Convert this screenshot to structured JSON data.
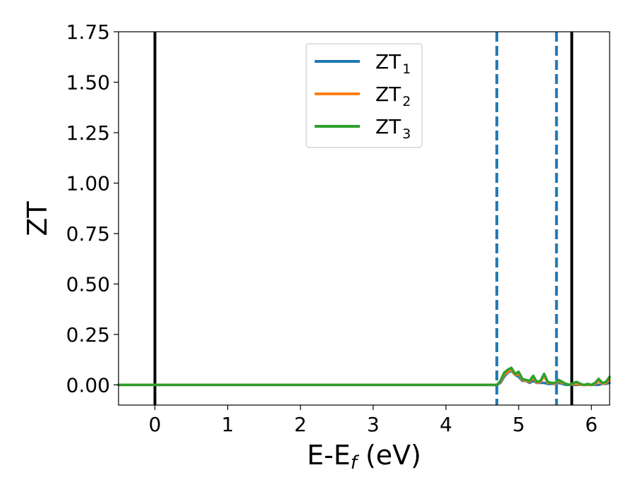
{
  "chart_data": {
    "type": "line",
    "xlabel": {
      "main": "E-E",
      "sub": "f",
      "tail": " (eV)"
    },
    "ylabel": "ZT",
    "xlim": [
      -0.5,
      6.25
    ],
    "ylim": [
      -0.1,
      1.75
    ],
    "xticks": [
      0,
      1,
      2,
      3,
      4,
      5,
      6
    ],
    "yticks": [
      0.0,
      0.25,
      0.5,
      0.75,
      1.0,
      1.25,
      1.5,
      1.75
    ],
    "xtick_labels": [
      "0",
      "1",
      "2",
      "3",
      "4",
      "5",
      "6"
    ],
    "ytick_labels": [
      "0.00",
      "0.25",
      "0.50",
      "0.75",
      "1.00",
      "1.25",
      "1.50",
      "1.75"
    ],
    "grid": false,
    "legend": {
      "placement": "top-center",
      "entries": [
        {
          "main": "ZT",
          "sub": "1"
        },
        {
          "main": "ZT",
          "sub": "2"
        },
        {
          "main": "ZT",
          "sub": "3"
        }
      ]
    },
    "vlines": [
      {
        "x": 0.0,
        "style": "solid",
        "color": "#000000"
      },
      {
        "x": 4.7,
        "style": "dashed",
        "color": "#1f77b4"
      },
      {
        "x": 5.52,
        "style": "dashed",
        "color": "#1f77b4"
      },
      {
        "x": 5.73,
        "style": "solid",
        "color": "#000000"
      }
    ],
    "series": [
      {
        "color": "#1f77b4",
        "x": [
          -0.5,
          4.7,
          4.75,
          4.8,
          4.85,
          4.9,
          4.95,
          5.0,
          5.05,
          5.1,
          5.15,
          5.2,
          5.25,
          5.3,
          5.35,
          5.4,
          5.45,
          5.5,
          5.55,
          5.6,
          5.65,
          5.7,
          5.75,
          5.8,
          5.85,
          5.9,
          5.95,
          6.0,
          6.05,
          6.1,
          6.15,
          6.2,
          6.25
        ],
        "y": [
          0.0,
          0.0,
          0.01,
          0.04,
          0.06,
          0.07,
          0.05,
          0.04,
          0.02,
          0.02,
          0.01,
          0.02,
          0.01,
          0.01,
          0.01,
          0.005,
          0.005,
          0.005,
          0.01,
          0.005,
          0.0,
          0.0,
          0.0,
          0.0,
          0.0,
          0.0,
          0.0,
          0.0,
          0.0,
          0.0,
          0.005,
          0.005,
          0.01
        ]
      },
      {
        "color": "#ff7f0e",
        "x": [
          -0.5,
          4.7,
          4.75,
          4.8,
          4.85,
          4.9,
          4.95,
          5.0,
          5.05,
          5.1,
          5.15,
          5.2,
          5.25,
          5.3,
          5.35,
          5.4,
          5.45,
          5.5,
          5.55,
          5.6,
          5.65,
          5.7,
          5.75,
          5.8,
          5.85,
          5.9,
          5.95,
          6.0,
          6.05,
          6.1,
          6.15,
          6.2,
          6.25
        ],
        "y": [
          0.0,
          0.0,
          0.015,
          0.05,
          0.065,
          0.075,
          0.05,
          0.055,
          0.025,
          0.02,
          0.015,
          0.035,
          0.01,
          0.015,
          0.045,
          0.01,
          0.01,
          0.005,
          0.02,
          0.01,
          0.005,
          0.0,
          0.005,
          0.005,
          0.0,
          0.0,
          0.0,
          0.0,
          0.005,
          0.02,
          0.005,
          0.01,
          0.025
        ]
      },
      {
        "color": "#2ca02c",
        "x": [
          -0.5,
          4.7,
          4.75,
          4.8,
          4.85,
          4.9,
          4.95,
          5.0,
          5.05,
          5.1,
          5.15,
          5.2,
          5.25,
          5.3,
          5.35,
          5.4,
          5.45,
          5.5,
          5.55,
          5.6,
          5.65,
          5.7,
          5.75,
          5.8,
          5.85,
          5.9,
          5.95,
          6.0,
          6.05,
          6.1,
          6.15,
          6.2,
          6.25
        ],
        "y": [
          0.0,
          0.0,
          0.02,
          0.06,
          0.075,
          0.085,
          0.055,
          0.065,
          0.03,
          0.025,
          0.02,
          0.045,
          0.015,
          0.02,
          0.055,
          0.015,
          0.01,
          0.01,
          0.025,
          0.015,
          0.005,
          0.0,
          0.01,
          0.015,
          0.005,
          0.0,
          0.005,
          0.0,
          0.01,
          0.03,
          0.01,
          0.015,
          0.04
        ]
      }
    ]
  }
}
